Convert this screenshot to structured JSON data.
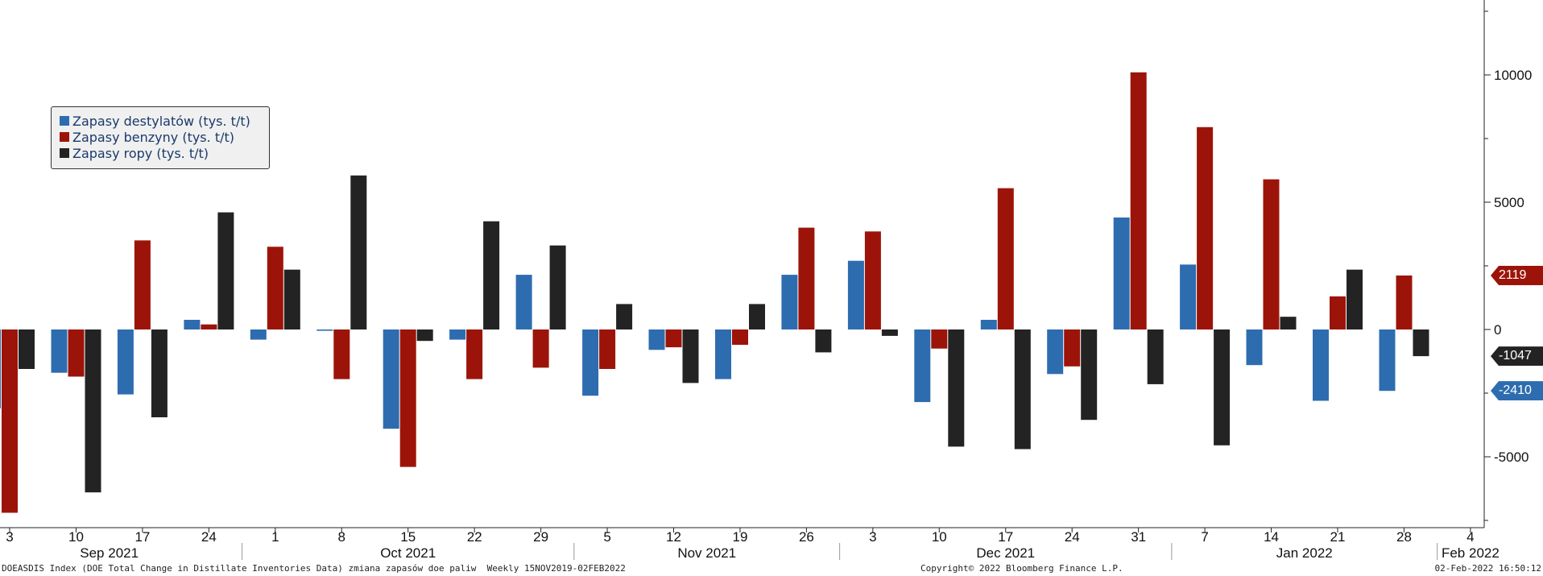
{
  "colors": {
    "distillates": "#2e6cb0",
    "gasoline": "#9c1409",
    "crude": "#232323"
  },
  "legend": {
    "items": [
      {
        "label": "Zapasy destylatów (tys. t/t)",
        "color": "#2e6cb0"
      },
      {
        "label": "Zapasy benzyny  (tys. t/t)",
        "color": "#9c1409"
      },
      {
        "label": "Zapasy ropy (tys. t/t)",
        "color": "#232323"
      }
    ]
  },
  "footer": {
    "left": "DOEASDIS Index (DOE Total Change in Distillate Inventories Data) zmiana zapasów doe paliw  Weekly 15NOV2019-02FEB2022",
    "center": "Copyright© 2022 Bloomberg Finance L.P.",
    "right": "02-Feb-2022 16:50:12"
  },
  "last_values": [
    {
      "label": "2119",
      "color": "#9c1409",
      "value": 2119
    },
    {
      "label": "-1047",
      "color": "#232323",
      "value": -1047
    },
    {
      "label": "-2410",
      "color": "#2e6cb0",
      "value": -2410
    }
  ],
  "chart_data": {
    "type": "bar",
    "title": "",
    "xlabel": "",
    "ylabel": "",
    "ylim": [
      -7700,
      12800
    ],
    "yticks": [
      -5000,
      0,
      5000,
      10000
    ],
    "categories": [
      "3",
      "10",
      "17",
      "24",
      "1",
      "8",
      "15",
      "22",
      "29",
      "5",
      "12",
      "19",
      "26",
      "3",
      "10",
      "17",
      "24",
      "31",
      "7",
      "14",
      "21",
      "28"
    ],
    "extra_xticks": [
      "4"
    ],
    "month_labels": [
      {
        "label": "Sep 2021",
        "between": [
          0,
          3
        ]
      },
      {
        "label": "Oct 2021",
        "between": [
          4,
          8
        ]
      },
      {
        "label": "Nov 2021",
        "between": [
          9,
          12
        ]
      },
      {
        "label": "Dec 2021",
        "between": [
          13,
          17
        ]
      },
      {
        "label": "Jan 2022",
        "between": [
          18,
          21
        ]
      },
      {
        "label": "Feb 2022",
        "between": [
          22,
          22
        ]
      }
    ],
    "series": [
      {
        "name": "Zapasy destylatów (tys. t/t)",
        "values": [
          -3100,
          -1700,
          -2550,
          380,
          -400,
          -50,
          -3900,
          -400,
          2150,
          -2600,
          -800,
          -1950,
          2150,
          2700,
          -2850,
          380,
          -1750,
          4400,
          2550,
          -1400,
          -2800,
          -2410
        ]
      },
      {
        "name": "Zapasy benzyny  (tys. t/t)",
        "values": [
          -7200,
          -1850,
          3500,
          200,
          3250,
          -1950,
          -5400,
          -1950,
          -1500,
          -1550,
          -700,
          -600,
          4000,
          3850,
          -750,
          5550,
          -1450,
          10100,
          7950,
          5900,
          1300,
          2119
        ]
      },
      {
        "name": "Zapasy ropy (tys. t/t)",
        "values": [
          -1550,
          -6400,
          -3450,
          4600,
          2350,
          6050,
          -450,
          4250,
          3300,
          1000,
          -2100,
          1000,
          -900,
          -250,
          -4600,
          -4700,
          -3550,
          -2150,
          -4550,
          500,
          2350,
          -1047
        ]
      }
    ]
  }
}
